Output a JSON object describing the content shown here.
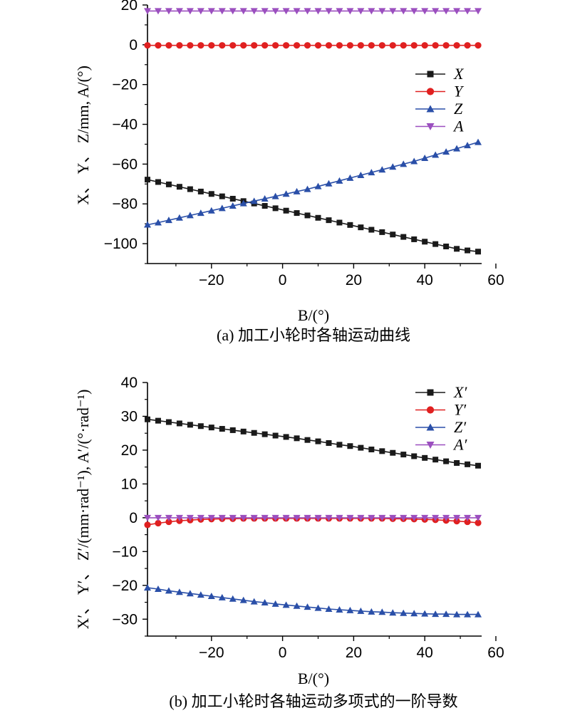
{
  "chart_data": [
    {
      "type": "line",
      "caption": "(a) 加工小轮时各轴运动曲线",
      "xlabel": "B/(°)",
      "ylabel": "X、 Y、 Z/mm, A/(°)",
      "xlim": [
        -38,
        56
      ],
      "ylim": [
        -110,
        20
      ],
      "xticks": [
        -20,
        0,
        20,
        40,
        60
      ],
      "xtick_labels": [
        "−20",
        "0",
        "20",
        "40",
        "60"
      ],
      "yticks": [
        20,
        0,
        -20,
        -40,
        -60,
        -80,
        -100
      ],
      "ytick_labels": [
        "20",
        "0",
        "−20",
        "−40",
        "−60",
        "−80",
        "−100"
      ],
      "x": [
        -38,
        -35,
        -32,
        -29,
        -26,
        -23,
        -20,
        -17,
        -14,
        -11,
        -8,
        -5,
        -2,
        1,
        4,
        7,
        10,
        13,
        16,
        19,
        22,
        25,
        28,
        31,
        34,
        37,
        40,
        43,
        46,
        49,
        52,
        55
      ],
      "legend_position": "upper-right",
      "series": [
        {
          "name": "X",
          "color": "#1a1a1a",
          "marker": "square",
          "values": [
            -67.8,
            -69.0,
            -70.2,
            -71.4,
            -72.6,
            -73.8,
            -75.0,
            -76.2,
            -77.4,
            -78.6,
            -79.8,
            -81.0,
            -82.2,
            -83.4,
            -84.6,
            -85.8,
            -87.0,
            -88.2,
            -89.4,
            -90.6,
            -91.8,
            -93.0,
            -94.2,
            -95.4,
            -96.6,
            -97.8,
            -99.0,
            -100.2,
            -101.4,
            -102.6,
            -103.4,
            -104.0
          ]
        },
        {
          "name": "Y",
          "color": "#e02020",
          "marker": "circle",
          "values": [
            -0.3,
            -0.3,
            -0.3,
            -0.3,
            -0.3,
            -0.3,
            -0.3,
            -0.3,
            -0.3,
            -0.3,
            -0.3,
            -0.3,
            -0.3,
            -0.3,
            -0.3,
            -0.3,
            -0.3,
            -0.3,
            -0.3,
            -0.3,
            -0.3,
            -0.3,
            -0.3,
            -0.3,
            -0.3,
            -0.3,
            -0.3,
            -0.3,
            -0.3,
            -0.3,
            -0.3,
            -0.3
          ]
        },
        {
          "name": "Z",
          "color": "#2a4fa8",
          "marker": "triangle-up",
          "values": [
            -90.5,
            -89.4,
            -88.2,
            -87.0,
            -85.8,
            -84.6,
            -83.4,
            -82.2,
            -81.0,
            -79.8,
            -78.6,
            -77.4,
            -76.2,
            -75.0,
            -73.8,
            -72.6,
            -71.2,
            -69.8,
            -68.4,
            -67.0,
            -65.6,
            -64.2,
            -62.8,
            -61.4,
            -60.0,
            -58.6,
            -57.0,
            -55.4,
            -53.8,
            -52.2,
            -50.6,
            -49.0
          ]
        },
        {
          "name": "A",
          "color": "#9b4fbf",
          "marker": "triangle-down",
          "values": [
            17,
            17,
            17,
            17,
            17,
            17,
            17,
            17,
            17,
            17,
            17,
            17,
            17,
            17,
            17,
            17,
            17,
            17,
            17,
            17,
            17,
            17,
            17,
            17,
            17,
            17,
            17,
            17,
            17,
            17,
            17,
            17
          ]
        }
      ]
    },
    {
      "type": "line",
      "caption": "(b) 加工小轮时各轴运动多项式的一阶导数",
      "xlabel": "B/(°)",
      "ylabel": "X′、 Y′、 Z′/(mm·rad⁻¹), A′/(°·rad⁻¹)",
      "xlim": [
        -38,
        56
      ],
      "ylim": [
        -35,
        40
      ],
      "xticks": [
        -20,
        0,
        20,
        40,
        60
      ],
      "xtick_labels": [
        "−20",
        "0",
        "20",
        "40",
        "60"
      ],
      "yticks": [
        40,
        30,
        20,
        10,
        0,
        -10,
        -20,
        -30
      ],
      "ytick_labels": [
        "40",
        "30",
        "20",
        "10",
        "0",
        "−10",
        "−20",
        "−30"
      ],
      "x": [
        -38,
        -35,
        -32,
        -29,
        -26,
        -23,
        -20,
        -17,
        -14,
        -11,
        -8,
        -5,
        -2,
        1,
        4,
        7,
        10,
        13,
        16,
        19,
        22,
        25,
        28,
        31,
        34,
        37,
        40,
        43,
        46,
        49,
        52,
        55
      ],
      "legend_position": "upper-right",
      "series": [
        {
          "name": "X′",
          "color": "#1a1a1a",
          "marker": "square",
          "values": [
            29.1,
            28.7,
            28.3,
            27.9,
            27.5,
            27.1,
            26.7,
            26.3,
            25.9,
            25.5,
            25.1,
            24.7,
            24.3,
            23.9,
            23.5,
            23.0,
            22.6,
            22.1,
            21.6,
            21.2,
            20.7,
            20.2,
            19.7,
            19.2,
            18.7,
            18.2,
            17.7,
            17.2,
            16.7,
            16.2,
            15.8,
            15.4
          ]
        },
        {
          "name": "Y′",
          "color": "#e02020",
          "marker": "circle",
          "values": [
            -2.1,
            -1.6,
            -1.2,
            -0.9,
            -0.7,
            -0.5,
            -0.4,
            -0.3,
            -0.3,
            -0.2,
            -0.2,
            -0.2,
            -0.2,
            -0.2,
            -0.2,
            -0.2,
            -0.2,
            -0.2,
            -0.2,
            -0.2,
            -0.2,
            -0.2,
            -0.2,
            -0.3,
            -0.3,
            -0.4,
            -0.5,
            -0.6,
            -0.8,
            -1.0,
            -1.2,
            -1.5
          ]
        },
        {
          "name": "Z′",
          "color": "#2a4fa8",
          "marker": "triangle-up",
          "values": [
            -20.7,
            -21.1,
            -21.6,
            -22.0,
            -22.4,
            -22.8,
            -23.2,
            -23.6,
            -24.0,
            -24.4,
            -24.8,
            -25.1,
            -25.5,
            -25.8,
            -26.1,
            -26.4,
            -26.7,
            -27.0,
            -27.2,
            -27.4,
            -27.6,
            -27.8,
            -27.9,
            -28.1,
            -28.2,
            -28.3,
            -28.4,
            -28.5,
            -28.5,
            -28.6,
            -28.6,
            -28.6
          ]
        },
        {
          "name": "A′",
          "color": "#9b4fbf",
          "marker": "triangle-down",
          "values": [
            0,
            0,
            0,
            0,
            0,
            0,
            0,
            0,
            0,
            0,
            0,
            0,
            0,
            0,
            0,
            0,
            0,
            0,
            0,
            0,
            0,
            0,
            0,
            0,
            0,
            0,
            0,
            0,
            0,
            0,
            0,
            0
          ]
        }
      ]
    }
  ]
}
